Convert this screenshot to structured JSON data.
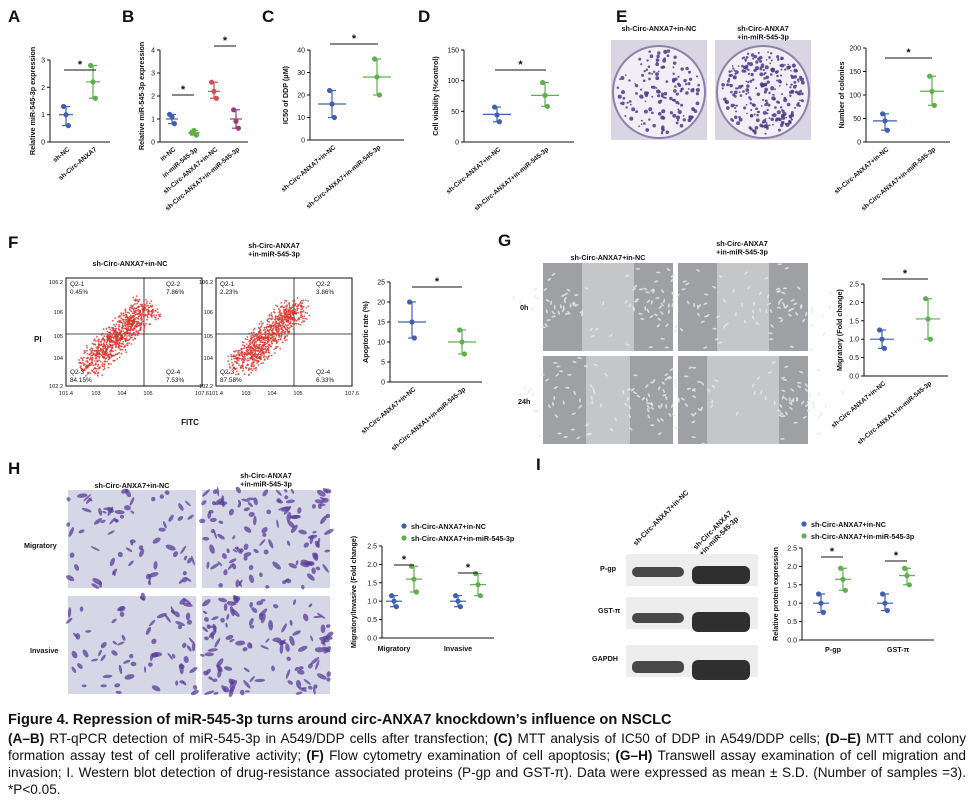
{
  "panels": {
    "A": {
      "letter": "A",
      "ylabel": "Relative miR-545-3p expression",
      "yticks": [
        "0",
        "1",
        "2",
        "3"
      ],
      "xlabels": [
        "sh-NC",
        "sh-Circ-ANXA7"
      ],
      "sig": "*"
    },
    "B": {
      "letter": "B",
      "ylabel": "Relative miR-545-3p expression",
      "yticks": [
        "0",
        "1",
        "2",
        "3",
        "4"
      ],
      "xlabels": [
        "in-NC",
        "in-miR-545-3p",
        "sh-Circ-ANXA7+in-NC",
        "sh-Circ-ANXA7+in-miR-545-3p"
      ],
      "sig": [
        "*",
        "*"
      ]
    },
    "C": {
      "letter": "C",
      "ylabel": "IC50 of DDP (μM)",
      "yticks": [
        "0",
        "10",
        "20",
        "30",
        "40"
      ],
      "xlabels": [
        "sh-Circ-ANXA7+in-NC",
        "sh-Circ-ANXA7+in-miR-545-3p"
      ],
      "sig": "*"
    },
    "D": {
      "letter": "D",
      "ylabel": "Cell viability (%control)",
      "yticks": [
        "0",
        "50",
        "100",
        "150"
      ],
      "xlabels": [
        "sh-Circ-ANXA7+in-NC",
        "sh-Circ-ANXA7+in-miR-545-3p"
      ],
      "sig": "*"
    },
    "E": {
      "letter": "E",
      "img_labels": [
        "sh-Circ-ANXA7+in-NC",
        "sh-Circ-ANXA7\n+in-miR-545-3p"
      ],
      "ylabel": "Number of colonies",
      "yticks": [
        "0",
        "50",
        "100",
        "150",
        "200"
      ],
      "xlabels": [
        "sh-Circ-ANXA7+in-NC",
        "sh-Circ-ANXA7+in-miR-545-3p"
      ],
      "sig": "*"
    },
    "F": {
      "letter": "F",
      "plot_titles": [
        "sh-Circ-ANXA7+in-NC",
        "sh-Circ-ANXA7\n+in-miR-545-3p"
      ],
      "quads": [
        [
          "Q2-1",
          "0.45%",
          "Q2-2",
          "7.86%",
          "Q2-3",
          "84.15%",
          "Q2-4",
          "7.53%"
        ],
        [
          "Q2-1",
          "2.23%",
          "Q2-2",
          "3.86%",
          "Q2-3",
          "87.58%",
          "Q2-4",
          "6.33%"
        ]
      ],
      "ytick": [
        "10^2.2",
        "10^4",
        "10^5",
        "10^6",
        "10^6.2"
      ],
      "xtick": [
        "10^1.4",
        "10^3",
        "10^4",
        "10^5",
        "10^7.6"
      ],
      "axis_y": "PI",
      "axis_x": "FITC",
      "ylabel": "Apoptotic rate (%)",
      "yticks": [
        "0",
        "5",
        "10",
        "15",
        "20",
        "25"
      ],
      "xlabels": [
        "sh-Circ-ANXA7+in-NC",
        "sh-Circ-ANXA1+in-miR-545-3p"
      ],
      "sig": "*"
    },
    "G": {
      "letter": "G",
      "col_labels": [
        "sh-Circ-ANXA7+in-NC",
        "sh-Circ-ANXA7\n+in-miR-545-3p"
      ],
      "row_labels": [
        "0h",
        "24h"
      ],
      "ylabel": "Migratory (Fold change)",
      "yticks": [
        "0.0",
        "0.5",
        "1.0",
        "1.5",
        "2.0",
        "2.5"
      ],
      "xlabels": [
        "sh-Circ-ANXA7+in-NC",
        "sh-Circ-ANXA1+in-miR-545-3p"
      ],
      "sig": "*"
    },
    "H": {
      "letter": "H",
      "col_labels": [
        "sh-Circ-ANXA7+in-NC",
        "sh-Circ-ANXA7\n+in-miR-545-3p"
      ],
      "row_labels": [
        "Migratory",
        "Invasive"
      ],
      "legend": [
        "sh-Circ-ANXA7+in-NC",
        "sh-Circ-ANXA7+in-miR-545-3p"
      ],
      "ylabel": "Migratory/Invasive (Fold change)",
      "yticks": [
        "0.0",
        "0.5",
        "1.0",
        "1.5",
        "2.0",
        "2.5"
      ],
      "groups": [
        "Migratory",
        "Invasive"
      ],
      "sig": [
        "*",
        "*"
      ]
    },
    "I": {
      "letter": "I",
      "lanes": [
        "sh-Circ-ANXA7+in-NC",
        "sh-Circ-ANXA7\n+in-miR-545-3p"
      ],
      "proteins": [
        "P-gp",
        "GST-π",
        "GAPDH"
      ],
      "legend": [
        "sh-Circ-ANXA7+in-NC",
        "sh-Circ-ANXA7+in-miR-545-3p"
      ],
      "ylabel": "Relative protein expression",
      "yticks": [
        "0.0",
        "0.5",
        "1.0",
        "1.5",
        "2.0",
        "2.5"
      ],
      "groups": [
        "P-gp",
        "GST-π"
      ],
      "sig": [
        "*",
        "*"
      ]
    }
  },
  "chart_data": [
    {
      "type": "scatter",
      "panel": "A",
      "categories": [
        "sh-NC",
        "sh-Circ-ANXA7"
      ],
      "series": [
        {
          "values": [
            [
              1.3,
              0.6,
              1.0
            ],
            [
              2.8,
              1.6,
              2.2
            ]
          ]
        }
      ],
      "mean": [
        1.0,
        2.2
      ],
      "ylim": [
        0,
        3
      ]
    },
    {
      "type": "scatter",
      "panel": "B",
      "categories": [
        "in-NC",
        "in-miR-545-3p",
        "sh-Circ-ANXA7+in-NC",
        "sh-Circ-ANXA7+in-miR-545-3p"
      ],
      "series": [
        {
          "values": [
            [
              1.2,
              0.8,
              1.1
            ],
            [
              0.4,
              0.3,
              0.5
            ],
            [
              2.6,
              1.9,
              2.2
            ],
            [
              1.4,
              0.6,
              0.9
            ]
          ]
        }
      ],
      "mean": [
        1.0,
        0.4,
        2.2,
        1.0
      ],
      "ylim": [
        0,
        4
      ]
    },
    {
      "type": "scatter",
      "panel": "C",
      "categories": [
        "sh-Circ-ANXA7+in-NC",
        "sh-Circ-ANXA7+in-miR-545-3p"
      ],
      "series": [
        {
          "values": [
            [
              22,
              10,
              16
            ],
            [
              36,
              20,
              28
            ]
          ]
        }
      ],
      "mean": [
        16,
        28
      ],
      "ylim": [
        0,
        40
      ]
    },
    {
      "type": "scatter",
      "panel": "D",
      "categories": [
        "sh-Circ-ANXA7+in-NC",
        "sh-Circ-ANXA7+in-miR-545-3p"
      ],
      "series": [
        {
          "values": [
            [
              57,
              33,
              44
            ],
            [
              97,
              58,
              76
            ]
          ]
        }
      ],
      "mean": [
        45,
        76
      ],
      "ylim": [
        0,
        150
      ]
    },
    {
      "type": "scatter",
      "panel": "E",
      "categories": [
        "sh-Circ-ANXA7+in-NC",
        "sh-Circ-ANXA7+in-miR-545-3p"
      ],
      "series": [
        {
          "values": [
            [
              60,
              25,
              45
            ],
            [
              140,
              78,
              108
            ]
          ]
        }
      ],
      "mean": [
        45,
        108
      ],
      "ylim": [
        0,
        200
      ]
    },
    {
      "type": "scatter",
      "panel": "F",
      "categories": [
        "sh-Circ-ANXA7+in-NC",
        "sh-Circ-ANXA1+in-miR-545-3p"
      ],
      "series": [
        {
          "values": [
            [
              20,
              11,
              15
            ],
            [
              13,
              7,
              10
            ]
          ]
        }
      ],
      "mean": [
        15,
        10
      ],
      "ylim": [
        0,
        25
      ]
    },
    {
      "type": "scatter",
      "panel": "G",
      "categories": [
        "sh-Circ-ANXA7+in-NC",
        "sh-Circ-ANXA1+in-miR-545-3p"
      ],
      "series": [
        {
          "values": [
            [
              1.25,
              0.75,
              1.0
            ],
            [
              2.1,
              1.0,
              1.55
            ]
          ]
        }
      ],
      "mean": [
        1.0,
        1.55
      ],
      "ylim": [
        0,
        2.5
      ]
    },
    {
      "type": "scatter",
      "panel": "H",
      "categories": [
        "Migratory",
        "Invasive"
      ],
      "series": [
        {
          "name": "sh-Circ-ANXA7+in-NC",
          "values": [
            [
              1.15,
              0.85,
              1.0
            ],
            [
              1.15,
              0.85,
              1.0
            ]
          ]
        },
        {
          "name": "sh-Circ-ANXA7+in-miR-545-3p",
          "values": [
            [
              1.95,
              1.25,
              1.6
            ],
            [
              1.75,
              1.15,
              1.45
            ]
          ]
        }
      ],
      "ylim": [
        0,
        2.5
      ]
    },
    {
      "type": "scatter",
      "panel": "I",
      "categories": [
        "P-gp",
        "GST-π"
      ],
      "series": [
        {
          "name": "sh-Circ-ANXA7+in-NC",
          "values": [
            [
              1.25,
              0.75,
              1.0
            ],
            [
              1.25,
              0.8,
              1.0
            ]
          ]
        },
        {
          "name": "sh-Circ-ANXA7+in-miR-545-3p",
          "values": [
            [
              1.95,
              1.35,
              1.65
            ],
            [
              1.95,
              1.5,
              1.75
            ]
          ]
        }
      ],
      "ylim": [
        0,
        2.5
      ]
    }
  ],
  "caption": {
    "title": "Figure 4. Repression of miR-545-3p turns around circ-ANXA7 knockdown’s influence on NSCLC",
    "parts": [
      {
        "b": "(A–B)"
      },
      {
        "t": " RT-qPCR detection of miR-545-3p in A549/DDP cells after transfection; "
      },
      {
        "b": "(C)"
      },
      {
        "t": " MTT analysis of IC50 of DDP in A549/DDP cells; "
      },
      {
        "b": "(D–E)"
      },
      {
        "t": " MTT and colony formation assay test of cell proliferative activity; "
      },
      {
        "b": "(F)"
      },
      {
        "t": " Flow cytometry examination of cell apoptosis; "
      },
      {
        "b": "(G–H)"
      },
      {
        "t": " Transwell assay examination of cell migration and invasion; I. Western blot detection of drug-resistance associated proteins (P-gp and GST-π). Data were expressed as mean ± S.D. (Number of samples =3). *P<0.05."
      }
    ]
  },
  "colors": {
    "blue": "#3f5fb0",
    "green": "#5fae4f",
    "red": "#d0504f",
    "purple": "#9b3a7a",
    "orange": "#e0a23a",
    "dish": "#f1eef6",
    "colony": "#4a3a86",
    "scatter": "#d6332b"
  }
}
